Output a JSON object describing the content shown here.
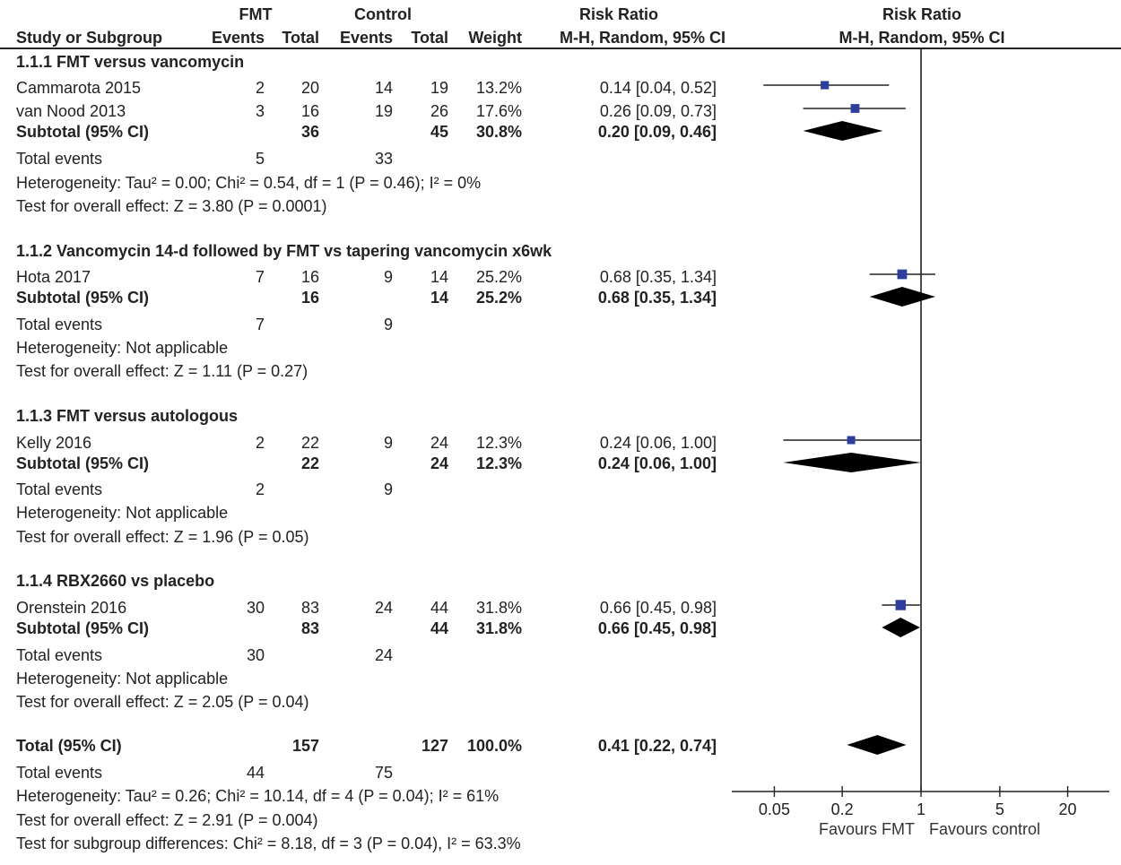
{
  "header": {
    "group1": "FMT",
    "group2": "Control",
    "rr_title": "Risk Ratio",
    "rr_method": "M-H, Random, 95% CI",
    "plot_title": "Risk Ratio",
    "plot_method": "M-H, Random, 95% CI",
    "col_study": "Study or Subgroup",
    "col_events1": "Events",
    "col_total1": "Total",
    "col_events2": "Events",
    "col_total2": "Total",
    "col_weight": "Weight"
  },
  "subgroups": [
    {
      "title": "1.1.1 FMT versus vancomycin",
      "studies": [
        {
          "name": "Cammarota 2015",
          "e1": "2",
          "t1": "20",
          "e2": "14",
          "t2": "19",
          "weight": "13.2%",
          "ci": "0.14 [0.04, 0.52]"
        },
        {
          "name": "van Nood 2013",
          "e1": "3",
          "t1": "16",
          "e2": "19",
          "t2": "26",
          "weight": "17.6%",
          "ci": "0.26 [0.09, 0.73]"
        }
      ],
      "subtotal": {
        "label": "Subtotal (95% CI)",
        "t1": "36",
        "t2": "45",
        "weight": "30.8%",
        "ci": "0.20 [0.09, 0.46]"
      },
      "total_events": {
        "label": "Total events",
        "e1": "5",
        "e2": "33"
      },
      "heterogeneity": "Heterogeneity: Tau² = 0.00; Chi² = 0.54, df = 1 (P = 0.46); I² = 0%",
      "overall": "Test for overall effect: Z = 3.80 (P = 0.0001)"
    },
    {
      "title": "1.1.2 Vancomycin 14-d followed by FMT vs tapering vancomycin x6wk",
      "studies": [
        {
          "name": "Hota 2017",
          "e1": "7",
          "t1": "16",
          "e2": "9",
          "t2": "14",
          "weight": "25.2%",
          "ci": "0.68 [0.35, 1.34]"
        }
      ],
      "subtotal": {
        "label": "Subtotal (95% CI)",
        "t1": "16",
        "t2": "14",
        "weight": "25.2%",
        "ci": "0.68 [0.35, 1.34]"
      },
      "total_events": {
        "label": "Total events",
        "e1": "7",
        "e2": "9"
      },
      "heterogeneity": "Heterogeneity: Not applicable",
      "overall": "Test for overall effect: Z = 1.11 (P = 0.27)"
    },
    {
      "title": "1.1.3 FMT versus autologous",
      "studies": [
        {
          "name": "Kelly 2016",
          "e1": "2",
          "t1": "22",
          "e2": "9",
          "t2": "24",
          "weight": "12.3%",
          "ci": "0.24 [0.06, 1.00]"
        }
      ],
      "subtotal": {
        "label": "Subtotal (95% CI)",
        "t1": "22",
        "t2": "24",
        "weight": "12.3%",
        "ci": "0.24 [0.06, 1.00]"
      },
      "total_events": {
        "label": "Total events",
        "e1": "2",
        "e2": "9"
      },
      "heterogeneity": "Heterogeneity: Not applicable",
      "overall": "Test for overall effect: Z = 1.96 (P = 0.05)"
    },
    {
      "title": "1.1.4 RBX2660 vs placebo",
      "studies": [
        {
          "name": "Orenstein 2016",
          "e1": "30",
          "t1": "83",
          "e2": "24",
          "t2": "44",
          "weight": "31.8%",
          "ci": "0.66 [0.45, 0.98]"
        }
      ],
      "subtotal": {
        "label": "Subtotal (95% CI)",
        "t1": "83",
        "t2": "44",
        "weight": "31.8%",
        "ci": "0.66 [0.45, 0.98]"
      },
      "total_events": {
        "label": "Total events",
        "e1": "30",
        "e2": "24"
      },
      "heterogeneity": "Heterogeneity: Not applicable",
      "overall": "Test for overall effect: Z = 2.05 (P = 0.04)"
    }
  ],
  "total": {
    "label": "Total (95% CI)",
    "t1": "157",
    "t2": "127",
    "weight": "100.0%",
    "ci": "0.41 [0.22, 0.74]",
    "events_label": "Total events",
    "e1": "44",
    "e2": "75",
    "heterogeneity": "Heterogeneity: Tau² = 0.26; Chi² = 10.14, df = 4 (P = 0.04); I² = 61%",
    "overall": "Test for overall effect: Z = 2.91 (P = 0.004)",
    "subgroup_diff": "Test for subgroup differences: Chi² = 8.18, df = 3 (P = 0.04), I² = 63.3%"
  },
  "axis": {
    "ticks": [
      "0.05",
      "0.2",
      "1",
      "5",
      "20"
    ],
    "favours_left": "Favours FMT",
    "favours_right": "Favours control"
  },
  "colors": {
    "square": "#2e3e9c",
    "diamond": "#000000",
    "line": "#222222"
  },
  "chart_data": {
    "type": "forest",
    "scale": "log",
    "xlim": [
      0.02,
      50
    ],
    "null_value": 1,
    "xticks": [
      0.05,
      0.2,
      1,
      5,
      20
    ],
    "xlabel_left": "Favours FMT",
    "xlabel_right": "Favours control",
    "title": "Risk Ratio",
    "subtitle": "M-H, Random, 95% CI",
    "studies": [
      {
        "name": "Cammarota 2015",
        "rr": 0.14,
        "lo": 0.04,
        "hi": 0.52,
        "weight": 13.2
      },
      {
        "name": "van Nood 2013",
        "rr": 0.26,
        "lo": 0.09,
        "hi": 0.73,
        "weight": 17.6
      },
      {
        "name": "Hota 2017",
        "rr": 0.68,
        "lo": 0.35,
        "hi": 1.34,
        "weight": 25.2
      },
      {
        "name": "Kelly 2016",
        "rr": 0.24,
        "lo": 0.06,
        "hi": 1.0,
        "weight": 12.3
      },
      {
        "name": "Orenstein 2016",
        "rr": 0.66,
        "lo": 0.45,
        "hi": 0.98,
        "weight": 31.8
      }
    ],
    "subtotals": [
      {
        "name": "1.1.1 Subtotal",
        "rr": 0.2,
        "lo": 0.09,
        "hi": 0.46
      },
      {
        "name": "1.1.2 Subtotal",
        "rr": 0.68,
        "lo": 0.35,
        "hi": 1.34
      },
      {
        "name": "1.1.3 Subtotal",
        "rr": 0.24,
        "lo": 0.06,
        "hi": 1.0
      },
      {
        "name": "1.1.4 Subtotal",
        "rr": 0.66,
        "lo": 0.45,
        "hi": 0.98
      }
    ],
    "overall": {
      "name": "Total",
      "rr": 0.41,
      "lo": 0.22,
      "hi": 0.74
    }
  }
}
